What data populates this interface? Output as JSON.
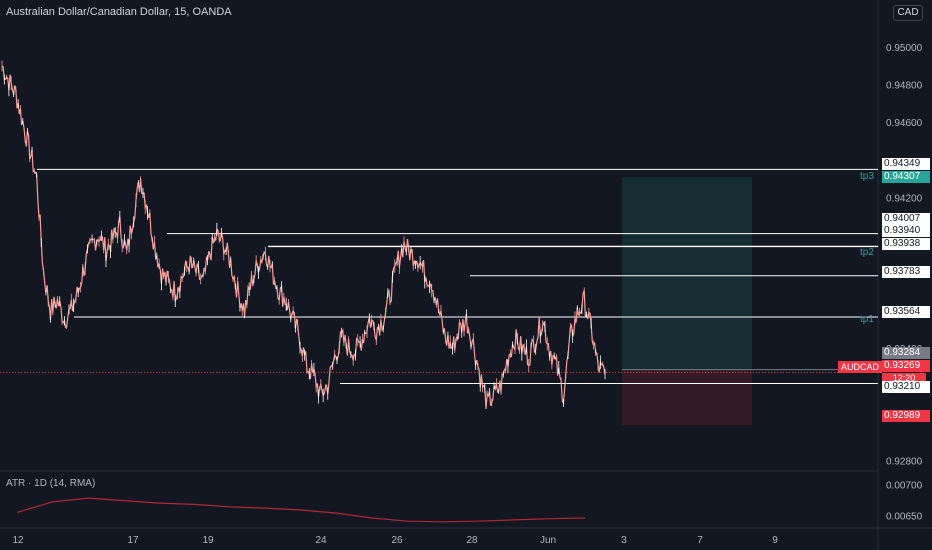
{
  "header": {
    "title": "Australian Dollar/Canadian Dollar, 15, OANDA",
    "currency": "CAD"
  },
  "indicator": {
    "title": "ATR · 1D (14, RMA)",
    "ticks": [
      "0.00700",
      "0.00650"
    ]
  },
  "symbol": "AUDCAD",
  "countdown": "12:20",
  "price_axis": {
    "ticks": [
      "0.95000",
      "0.94800",
      "0.94600",
      "0.94200",
      "0.93400",
      "0.92800"
    ]
  },
  "price_tags": [
    {
      "value": "0.94349",
      "style": "white"
    },
    {
      "value": "0.94307",
      "style": "teal"
    },
    {
      "value": "0.94007",
      "style": "white"
    },
    {
      "value": "0.93940",
      "style": "white"
    },
    {
      "value": "0.93938",
      "style": "white"
    },
    {
      "value": "0.93783",
      "style": "white"
    },
    {
      "value": "0.93564",
      "style": "white"
    },
    {
      "value": "0.93284",
      "style": "gray"
    },
    {
      "value": "0.93269",
      "style": "red"
    },
    {
      "value": "0.93210",
      "style": "white"
    },
    {
      "value": "0.92989",
      "style": "red"
    }
  ],
  "targets": [
    "tp3",
    "tp2",
    "tp1"
  ],
  "time_axis": {
    "ticks": [
      "12",
      "17",
      "19",
      "24",
      "26",
      "28",
      "Jun",
      "3",
      "7",
      "9"
    ]
  },
  "colors": {
    "background": "#131722",
    "candle": "#f7a19a",
    "target_zone": "#26a69a",
    "stop_zone": "#f23645",
    "atr_line": "#b22833"
  },
  "chart_data": {
    "type": "line",
    "series": [
      {
        "values": [
          0.949,
          0.9482,
          0.9475,
          0.946,
          0.9445,
          0.943,
          0.938,
          0.936,
          0.9365,
          0.9355,
          0.936,
          0.937,
          0.9385,
          0.9395,
          0.94,
          0.9392,
          0.9398,
          0.9405,
          0.939,
          0.9412,
          0.943,
          0.9415,
          0.9395,
          0.938,
          0.9375,
          0.937,
          0.9378,
          0.9385,
          0.938,
          0.9375,
          0.939,
          0.94,
          0.9395,
          0.9385,
          0.937,
          0.936,
          0.9375,
          0.9385,
          0.9392,
          0.938,
          0.937,
          0.9365,
          0.9355,
          0.9345,
          0.933,
          0.9325,
          0.9315,
          0.932,
          0.9335,
          0.9345,
          0.934,
          0.9338,
          0.9345,
          0.9355,
          0.935,
          0.9355,
          0.9368,
          0.9385,
          0.9395,
          0.939,
          0.9388,
          0.938,
          0.9375,
          0.936,
          0.9345,
          0.934,
          0.935,
          0.9355,
          0.9342,
          0.9325,
          0.931,
          0.9315,
          0.932,
          0.9335,
          0.9345,
          0.934,
          0.9335,
          0.9345,
          0.9355,
          0.934,
          0.933,
          0.9315,
          0.9345,
          0.9358,
          0.9365,
          0.935,
          0.933,
          0.9326
        ]
      }
    ],
    "ylim": [
      0.9275,
      0.9525
    ],
    "horizontal_levels": [
      0.94349,
      0.94007,
      0.9394,
      0.93938,
      0.93783,
      0.93564,
      0.93284,
      0.9321
    ],
    "current_price": 0.93269,
    "position": {
      "entry": 0.93284,
      "target": 0.94307,
      "stop": 0.92989
    },
    "atr": {
      "values": [
        0.00655,
        0.00672,
        0.00678,
        0.00674,
        0.0067,
        0.00668,
        0.00664,
        0.00662,
        0.00659,
        0.00654,
        0.00646,
        0.00641,
        0.0064,
        0.00641,
        0.00643,
        0.00645,
        0.00646
      ],
      "ylim": [
        0.0063,
        0.0072
      ]
    }
  }
}
